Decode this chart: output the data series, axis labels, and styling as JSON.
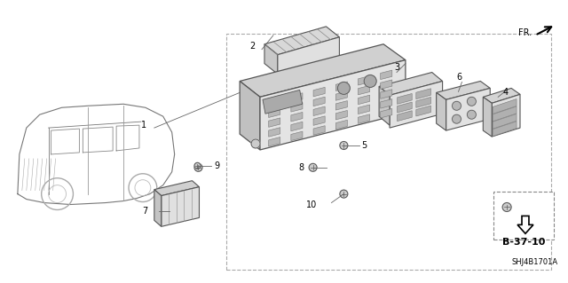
{
  "bg_color": "#ffffff",
  "line_color": "#555555",
  "text_color": "#000000",
  "ref_code": "B-37-10",
  "diagram_code": "SHJ4B1701A",
  "fr_text": "FR.",
  "border_dash": "--",
  "border_color": "#888888",
  "component_fill": "#e8e8e8",
  "dark_fill": "#cccccc",
  "car_color": "#666666",
  "label_fontsize": 7,
  "ref_fontsize": 9
}
